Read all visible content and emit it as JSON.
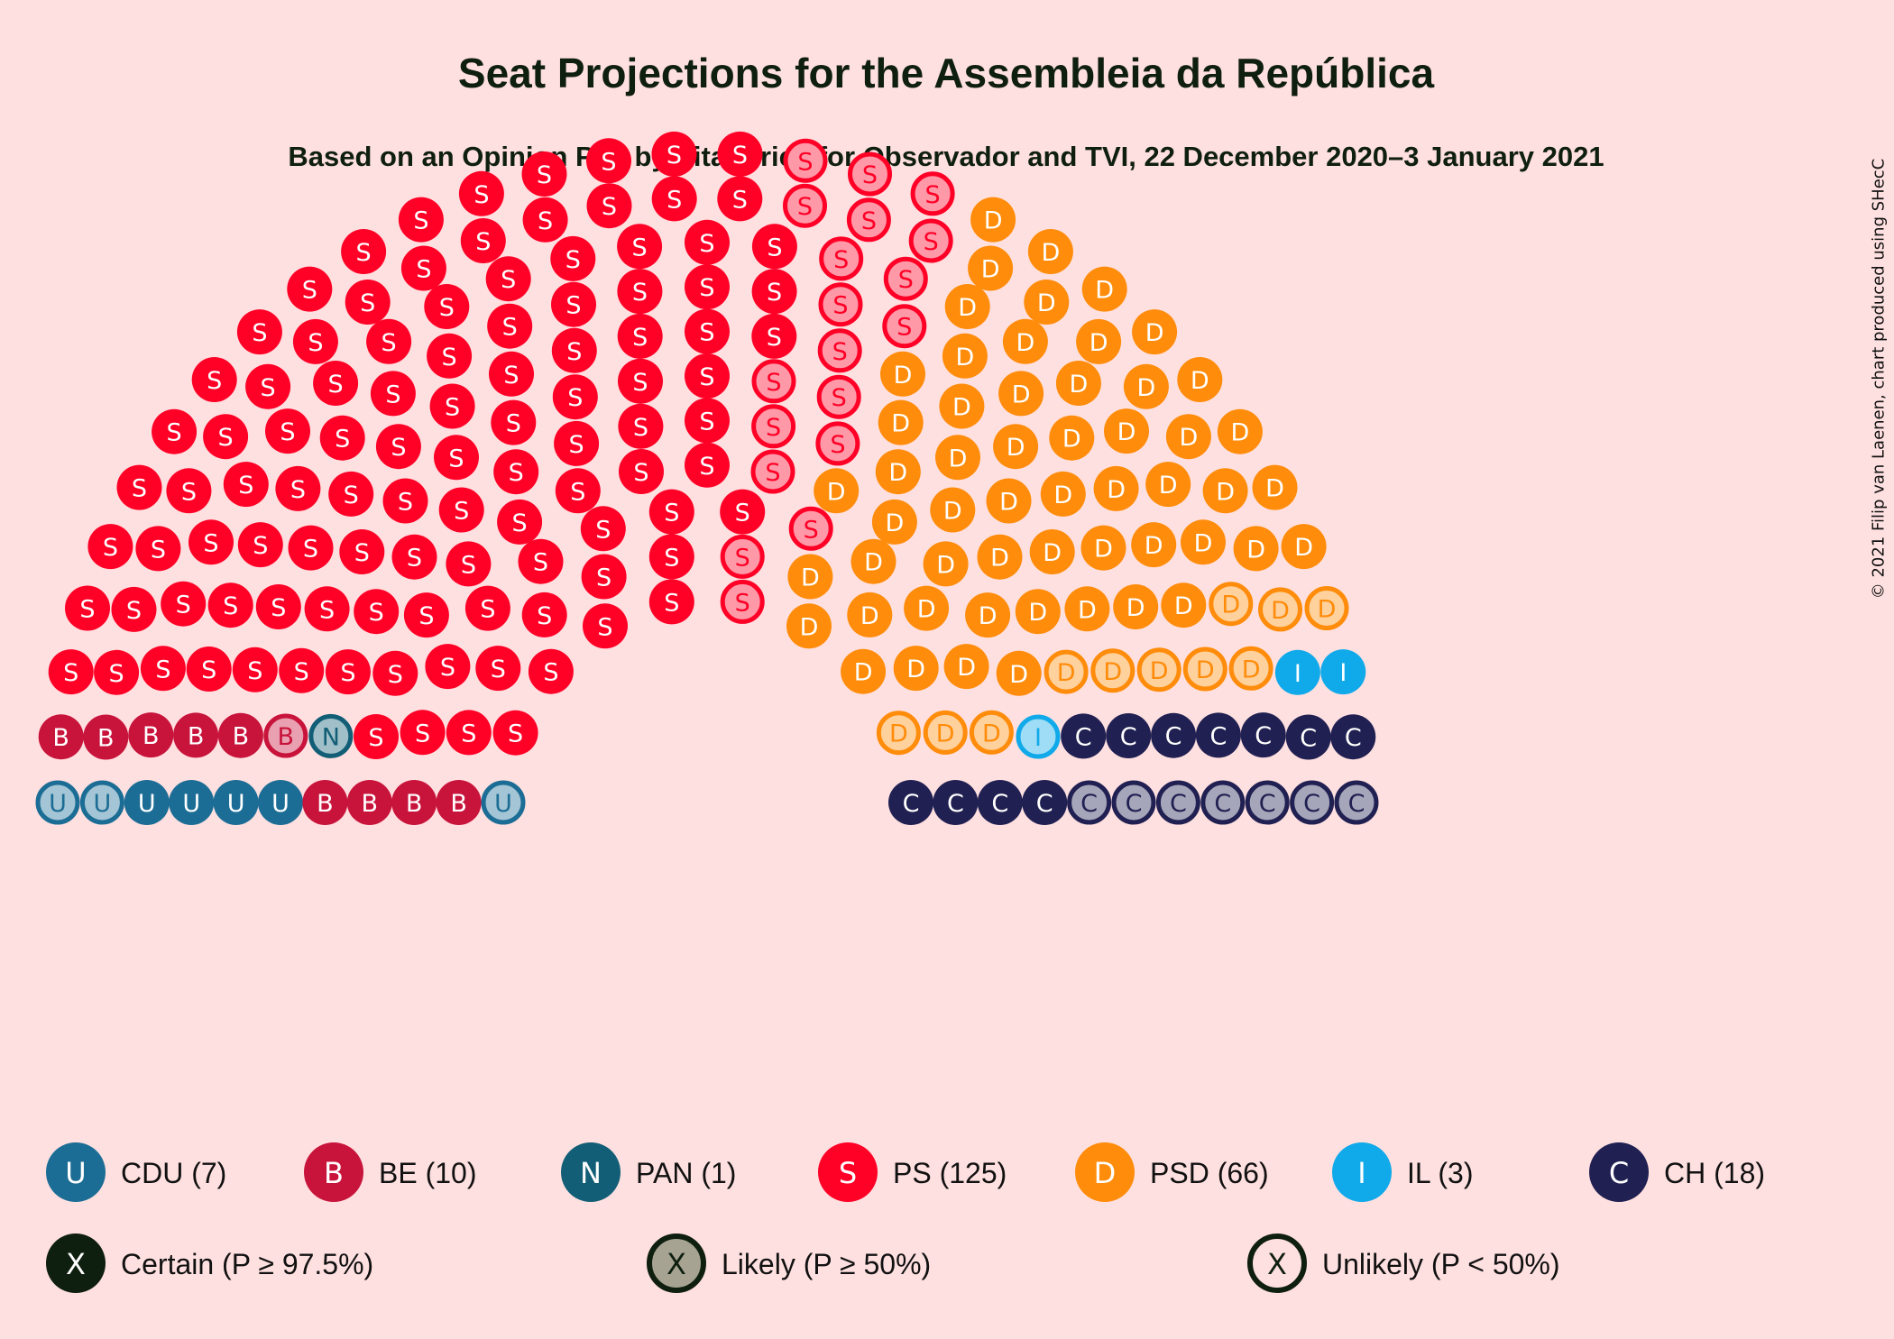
{
  "title": "Seat Projections for the Assembleia da República",
  "subtitle": "Based on an Opinion Poll by Pitagórica for Observador and TVI, 22 December 2020–3 January 2021",
  "copyright": "© 2021 Filip van Laenen, chart produced using SHecC",
  "chart_data": {
    "type": "parliament",
    "total_seats": 230,
    "parties": [
      {
        "name": "CDU",
        "letter": "U",
        "seats": 7,
        "certain": 4,
        "likely": 3,
        "color": "#1C6D95"
      },
      {
        "name": "BE",
        "letter": "B",
        "seats": 10,
        "certain": 9,
        "likely": 1,
        "color": "#C8133B"
      },
      {
        "name": "PAN",
        "letter": "N",
        "seats": 1,
        "certain": 0,
        "likely": 1,
        "color": "#115E76"
      },
      {
        "name": "PS",
        "letter": "S",
        "seats": 125,
        "certain": 106,
        "likely": 19,
        "color": "#FF0026"
      },
      {
        "name": "PSD",
        "letter": "D",
        "seats": 66,
        "certain": 55,
        "likely": 11,
        "color": "#FF8C0A"
      },
      {
        "name": "IL",
        "letter": "I",
        "seats": 3,
        "certain": 2,
        "likely": 1,
        "color": "#10A9E9"
      },
      {
        "name": "CH",
        "letter": "C",
        "seats": 18,
        "certain": 11,
        "likely": 7,
        "color": "#202052"
      }
    ],
    "legend_parties": [
      "CDU (7)",
      "BE (10)",
      "PAN (1)",
      "PS (125)",
      "PSD (66)",
      "IL (3)",
      "CH (18)"
    ],
    "legend_certainty": [
      {
        "letter": "X",
        "label": "Certain (P ≥ 97.5%)"
      },
      {
        "letter": "X",
        "label": "Likely (P ≥ 50%)"
      },
      {
        "letter": "X",
        "label": "Unlikely (P < 50%)"
      }
    ]
  }
}
